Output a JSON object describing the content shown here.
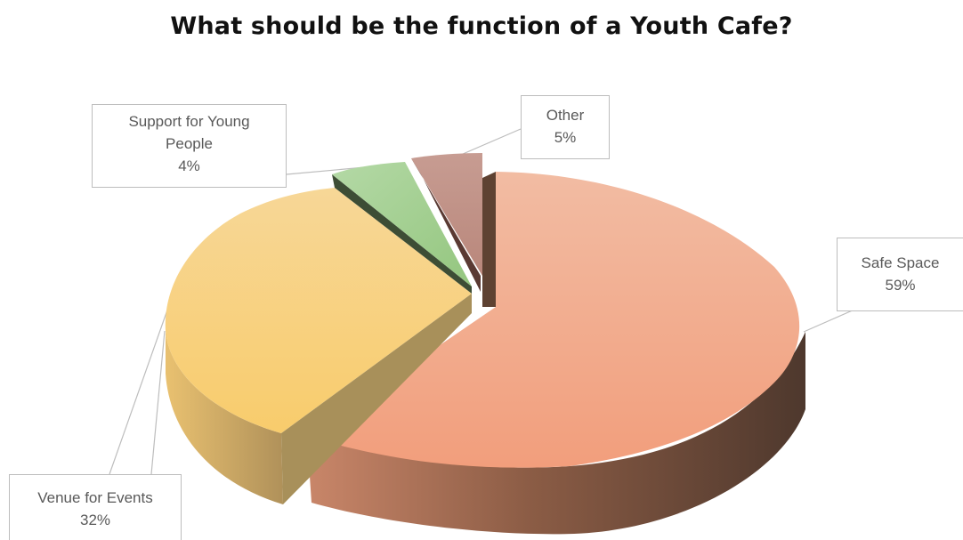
{
  "chart_data": {
    "type": "pie",
    "title": "What should be the function of a Youth Cafe?",
    "three_d": true,
    "exploded": true,
    "data_labels": "category name and percentage with leader lines",
    "slices": [
      {
        "label": "Safe Space",
        "value": 59,
        "value_label": "59%",
        "color": "#f2a280"
      },
      {
        "label": "Venue for Events",
        "value": 32,
        "value_label": "32%",
        "color": "#f8cf78"
      },
      {
        "label": "Support for Young People",
        "label_lines": [
          "Support for Young",
          "People"
        ],
        "value": 4,
        "value_label": "4%",
        "color": "#9ccd8c"
      },
      {
        "label": "Other",
        "value": 5,
        "value_label": "5%",
        "color": "#c4958a"
      }
    ]
  }
}
